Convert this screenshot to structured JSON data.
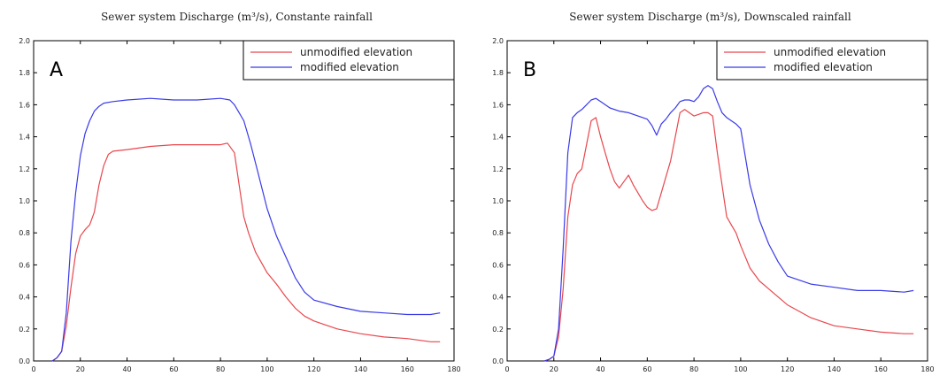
{
  "colors": {
    "unmodified": "#e8474d",
    "modified": "#3a3ae8",
    "axis": "#000000",
    "frame": "#000000"
  },
  "chart_data": [
    {
      "type": "line",
      "title": "Sewer system Discharge (m³/s), Constante rainfall",
      "panel_label": "A",
      "xlim": [
        0,
        180
      ],
      "ylim": [
        0,
        2.0
      ],
      "xticks": [
        0,
        20,
        40,
        60,
        80,
        100,
        120,
        140,
        160,
        180
      ],
      "yticks": [
        0.0,
        0.2,
        0.4,
        0.6,
        0.8,
        1.0,
        1.2,
        1.4,
        1.6,
        1.8,
        2.0
      ],
      "legend": "top-right",
      "series": [
        {
          "name": "unmodified elevation",
          "color_key": "unmodified",
          "x": [
            8,
            10,
            12,
            14,
            16,
            18,
            20,
            22,
            24,
            26,
            28,
            30,
            32,
            34,
            40,
            50,
            60,
            70,
            80,
            83,
            86,
            88,
            90,
            92,
            95,
            100,
            104,
            108,
            112,
            116,
            120,
            130,
            140,
            150,
            160,
            170,
            174
          ],
          "y": [
            0.0,
            0.02,
            0.06,
            0.22,
            0.46,
            0.67,
            0.78,
            0.82,
            0.85,
            0.93,
            1.1,
            1.22,
            1.29,
            1.31,
            1.32,
            1.34,
            1.35,
            1.35,
            1.35,
            1.36,
            1.3,
            1.1,
            0.9,
            0.8,
            0.68,
            0.55,
            0.48,
            0.4,
            0.33,
            0.28,
            0.25,
            0.2,
            0.17,
            0.15,
            0.14,
            0.12,
            0.12
          ]
        },
        {
          "name": "modified elevation",
          "color_key": "modified",
          "x": [
            8,
            10,
            12,
            14,
            16,
            18,
            20,
            22,
            24,
            26,
            28,
            30,
            34,
            40,
            50,
            60,
            70,
            80,
            84,
            86,
            88,
            90,
            93,
            96,
            100,
            104,
            108,
            112,
            116,
            120,
            130,
            140,
            150,
            160,
            170,
            174
          ],
          "y": [
            0.0,
            0.02,
            0.06,
            0.3,
            0.75,
            1.05,
            1.28,
            1.42,
            1.5,
            1.56,
            1.59,
            1.61,
            1.62,
            1.63,
            1.64,
            1.63,
            1.63,
            1.64,
            1.63,
            1.6,
            1.55,
            1.5,
            1.35,
            1.18,
            0.95,
            0.78,
            0.65,
            0.52,
            0.43,
            0.38,
            0.34,
            0.31,
            0.3,
            0.29,
            0.29,
            0.3
          ]
        }
      ]
    },
    {
      "type": "line",
      "title": "Sewer system Discharge (m³/s), Downscaled rainfall",
      "panel_label": "B",
      "xlim": [
        0,
        180
      ],
      "ylim": [
        0,
        2.0
      ],
      "xticks": [
        0,
        20,
        40,
        60,
        80,
        100,
        120,
        140,
        160,
        180
      ],
      "yticks": [
        0.0,
        0.2,
        0.4,
        0.6,
        0.8,
        1.0,
        1.2,
        1.4,
        1.6,
        1.8,
        2.0
      ],
      "legend": "top-right",
      "series": [
        {
          "name": "unmodified elevation",
          "color_key": "unmodified",
          "x": [
            16,
            18,
            20,
            22,
            24,
            26,
            28,
            30,
            32,
            34,
            36,
            38,
            40,
            42,
            44,
            46,
            48,
            50,
            52,
            54,
            56,
            58,
            60,
            62,
            64,
            66,
            68,
            70,
            72,
            74,
            76,
            78,
            80,
            82,
            84,
            86,
            88,
            90,
            92,
            94,
            96,
            98,
            100,
            104,
            108,
            112,
            116,
            120,
            130,
            140,
            150,
            160,
            170,
            174
          ],
          "y": [
            0.0,
            0.01,
            0.03,
            0.15,
            0.45,
            0.9,
            1.1,
            1.17,
            1.2,
            1.35,
            1.5,
            1.52,
            1.4,
            1.3,
            1.2,
            1.12,
            1.08,
            1.12,
            1.16,
            1.1,
            1.05,
            1.0,
            0.96,
            0.94,
            0.95,
            1.05,
            1.15,
            1.25,
            1.4,
            1.55,
            1.57,
            1.55,
            1.53,
            1.54,
            1.55,
            1.55,
            1.53,
            1.3,
            1.1,
            0.9,
            0.85,
            0.8,
            0.72,
            0.58,
            0.5,
            0.45,
            0.4,
            0.35,
            0.27,
            0.22,
            0.2,
            0.18,
            0.17,
            0.17
          ]
        },
        {
          "name": "modified elevation",
          "color_key": "modified",
          "x": [
            16,
            18,
            20,
            22,
            24,
            26,
            28,
            30,
            32,
            34,
            36,
            38,
            40,
            44,
            48,
            52,
            56,
            60,
            62,
            64,
            66,
            68,
            70,
            72,
            74,
            76,
            78,
            80,
            82,
            84,
            86,
            88,
            90,
            92,
            94,
            96,
            98,
            100,
            104,
            108,
            112,
            116,
            120,
            130,
            140,
            150,
            160,
            170,
            174
          ],
          "y": [
            0.0,
            0.01,
            0.03,
            0.2,
            0.7,
            1.3,
            1.52,
            1.55,
            1.57,
            1.6,
            1.63,
            1.64,
            1.62,
            1.58,
            1.56,
            1.55,
            1.53,
            1.51,
            1.47,
            1.41,
            1.48,
            1.51,
            1.55,
            1.58,
            1.62,
            1.63,
            1.63,
            1.62,
            1.65,
            1.7,
            1.72,
            1.7,
            1.62,
            1.55,
            1.52,
            1.5,
            1.48,
            1.45,
            1.1,
            0.88,
            0.73,
            0.62,
            0.53,
            0.48,
            0.46,
            0.44,
            0.44,
            0.43,
            0.44
          ]
        }
      ]
    }
  ]
}
